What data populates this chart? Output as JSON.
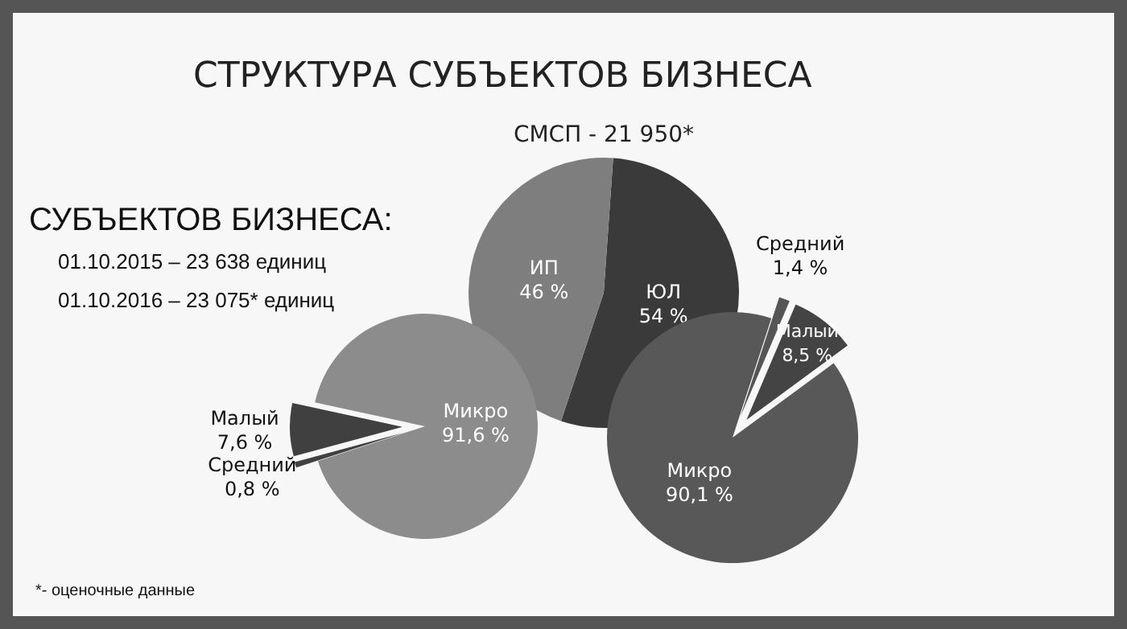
{
  "chart_data": [
    {
      "type": "other",
      "title": "СТРУКТУРА СУБЪЕКТОВ БИЗНЕСА",
      "annotations": [
        "СУБЪЕКТОВ БИЗНЕСА:",
        "01.10.2015 – 23 638 единиц",
        "01.10.2016 – 23 075* единиц",
        "*- оценочные данные"
      ]
    },
    {
      "type": "pie",
      "title": "СМСП - 21 950*",
      "categories": [
        "ЮЛ",
        "ИП"
      ],
      "values": [
        54,
        46
      ],
      "value_labels": [
        "54 %",
        "46 %"
      ],
      "colors": [
        "#3a3a3a",
        "#7e7e7e"
      ]
    },
    {
      "type": "pie",
      "categories": [
        "Средний",
        "Малый",
        "Микро"
      ],
      "values": [
        0.8,
        7.6,
        91.6
      ],
      "value_labels": [
        "0,8 %",
        "7,6 %",
        "91,6 %"
      ],
      "colors": [
        "#404040",
        "#404040",
        "#8c8c8c"
      ]
    },
    {
      "type": "pie",
      "categories": [
        "Средний",
        "Малый",
        "Микро"
      ],
      "values": [
        1.4,
        8.5,
        90.1
      ],
      "value_labels": [
        "1,4 %",
        "8,5 %",
        "90,1 %"
      ],
      "colors": [
        "#555555",
        "#444444",
        "#585858"
      ]
    }
  ]
}
